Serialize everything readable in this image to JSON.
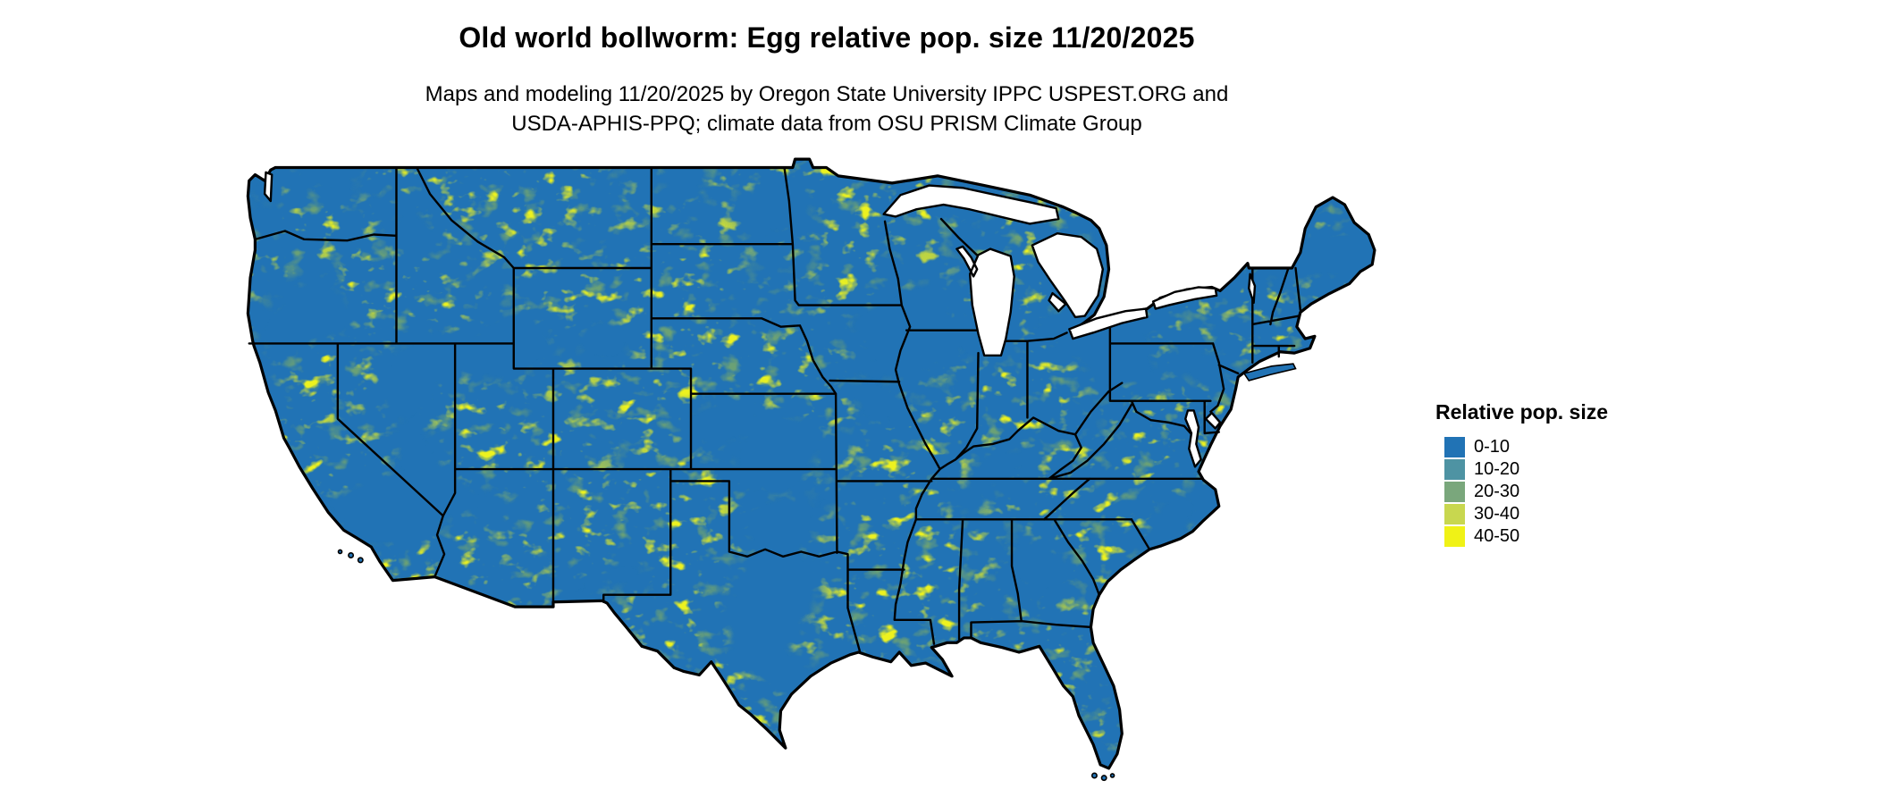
{
  "header": {
    "title": "Old world bollworm: Egg relative pop. size 11/20/2025",
    "subtitle_line1": "Maps and modeling 11/20/2025 by Oregon State University IPPC USPEST.ORG and",
    "subtitle_line2": "USDA-APHIS-PPQ; climate data from OSU PRISM Climate Group"
  },
  "map": {
    "region": "Contiguous United States",
    "base_color": "#2173b5",
    "border_color": "#000000",
    "water_color": "#ffffff"
  },
  "legend": {
    "title": "Relative pop. size",
    "items": [
      {
        "label": "0-10",
        "color": "#2173b5"
      },
      {
        "label": "10-20",
        "color": "#4e93a3"
      },
      {
        "label": "20-30",
        "color": "#7aa77c"
      },
      {
        "label": "30-40",
        "color": "#c8d74f"
      },
      {
        "label": "40-50",
        "color": "#f0f216"
      }
    ]
  }
}
